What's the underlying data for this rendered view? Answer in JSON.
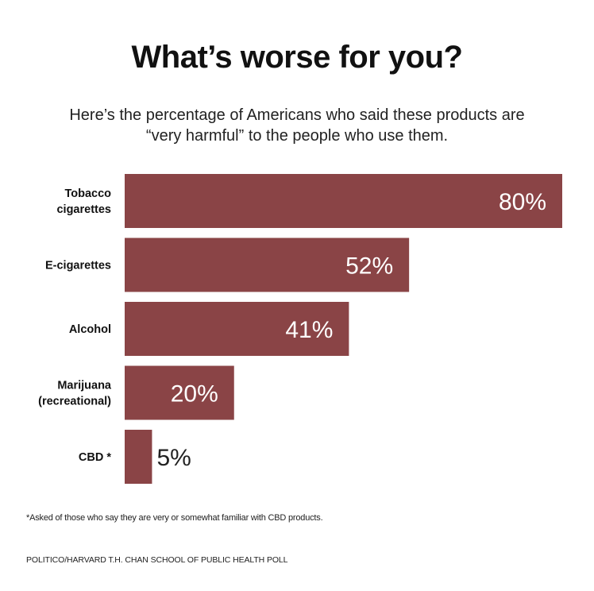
{
  "header": {
    "title": "What’s worse for you?",
    "subtitle": "Here’s the percentage of Americans who said these products are “very harmful” to the people who use them."
  },
  "chart_data": {
    "type": "bar",
    "orientation": "horizontal",
    "categories": [
      [
        "Tobacco",
        "cigarettes"
      ],
      [
        "E-cigarettes"
      ],
      [
        "Alcohol"
      ],
      [
        "Marijuana",
        "(recreational)"
      ],
      [
        "CBD *"
      ]
    ],
    "values": [
      80,
      52,
      41,
      20,
      5
    ],
    "value_labels": [
      "80%",
      "52%",
      "41%",
      "20%",
      "5%"
    ],
    "unit": "%",
    "xlim": [
      0,
      80
    ],
    "bar_color": "#8a4446",
    "label_inside_color": "#ffffff",
    "label_outside_color": "#222222",
    "grid": false,
    "legend": "none"
  },
  "footer": {
    "note": "*Asked of those who say they are very or somewhat familiar with CBD products.",
    "source": "POLITICO/HARVARD T.H. CHAN SCHOOL OF PUBLIC HEALTH POLL"
  }
}
